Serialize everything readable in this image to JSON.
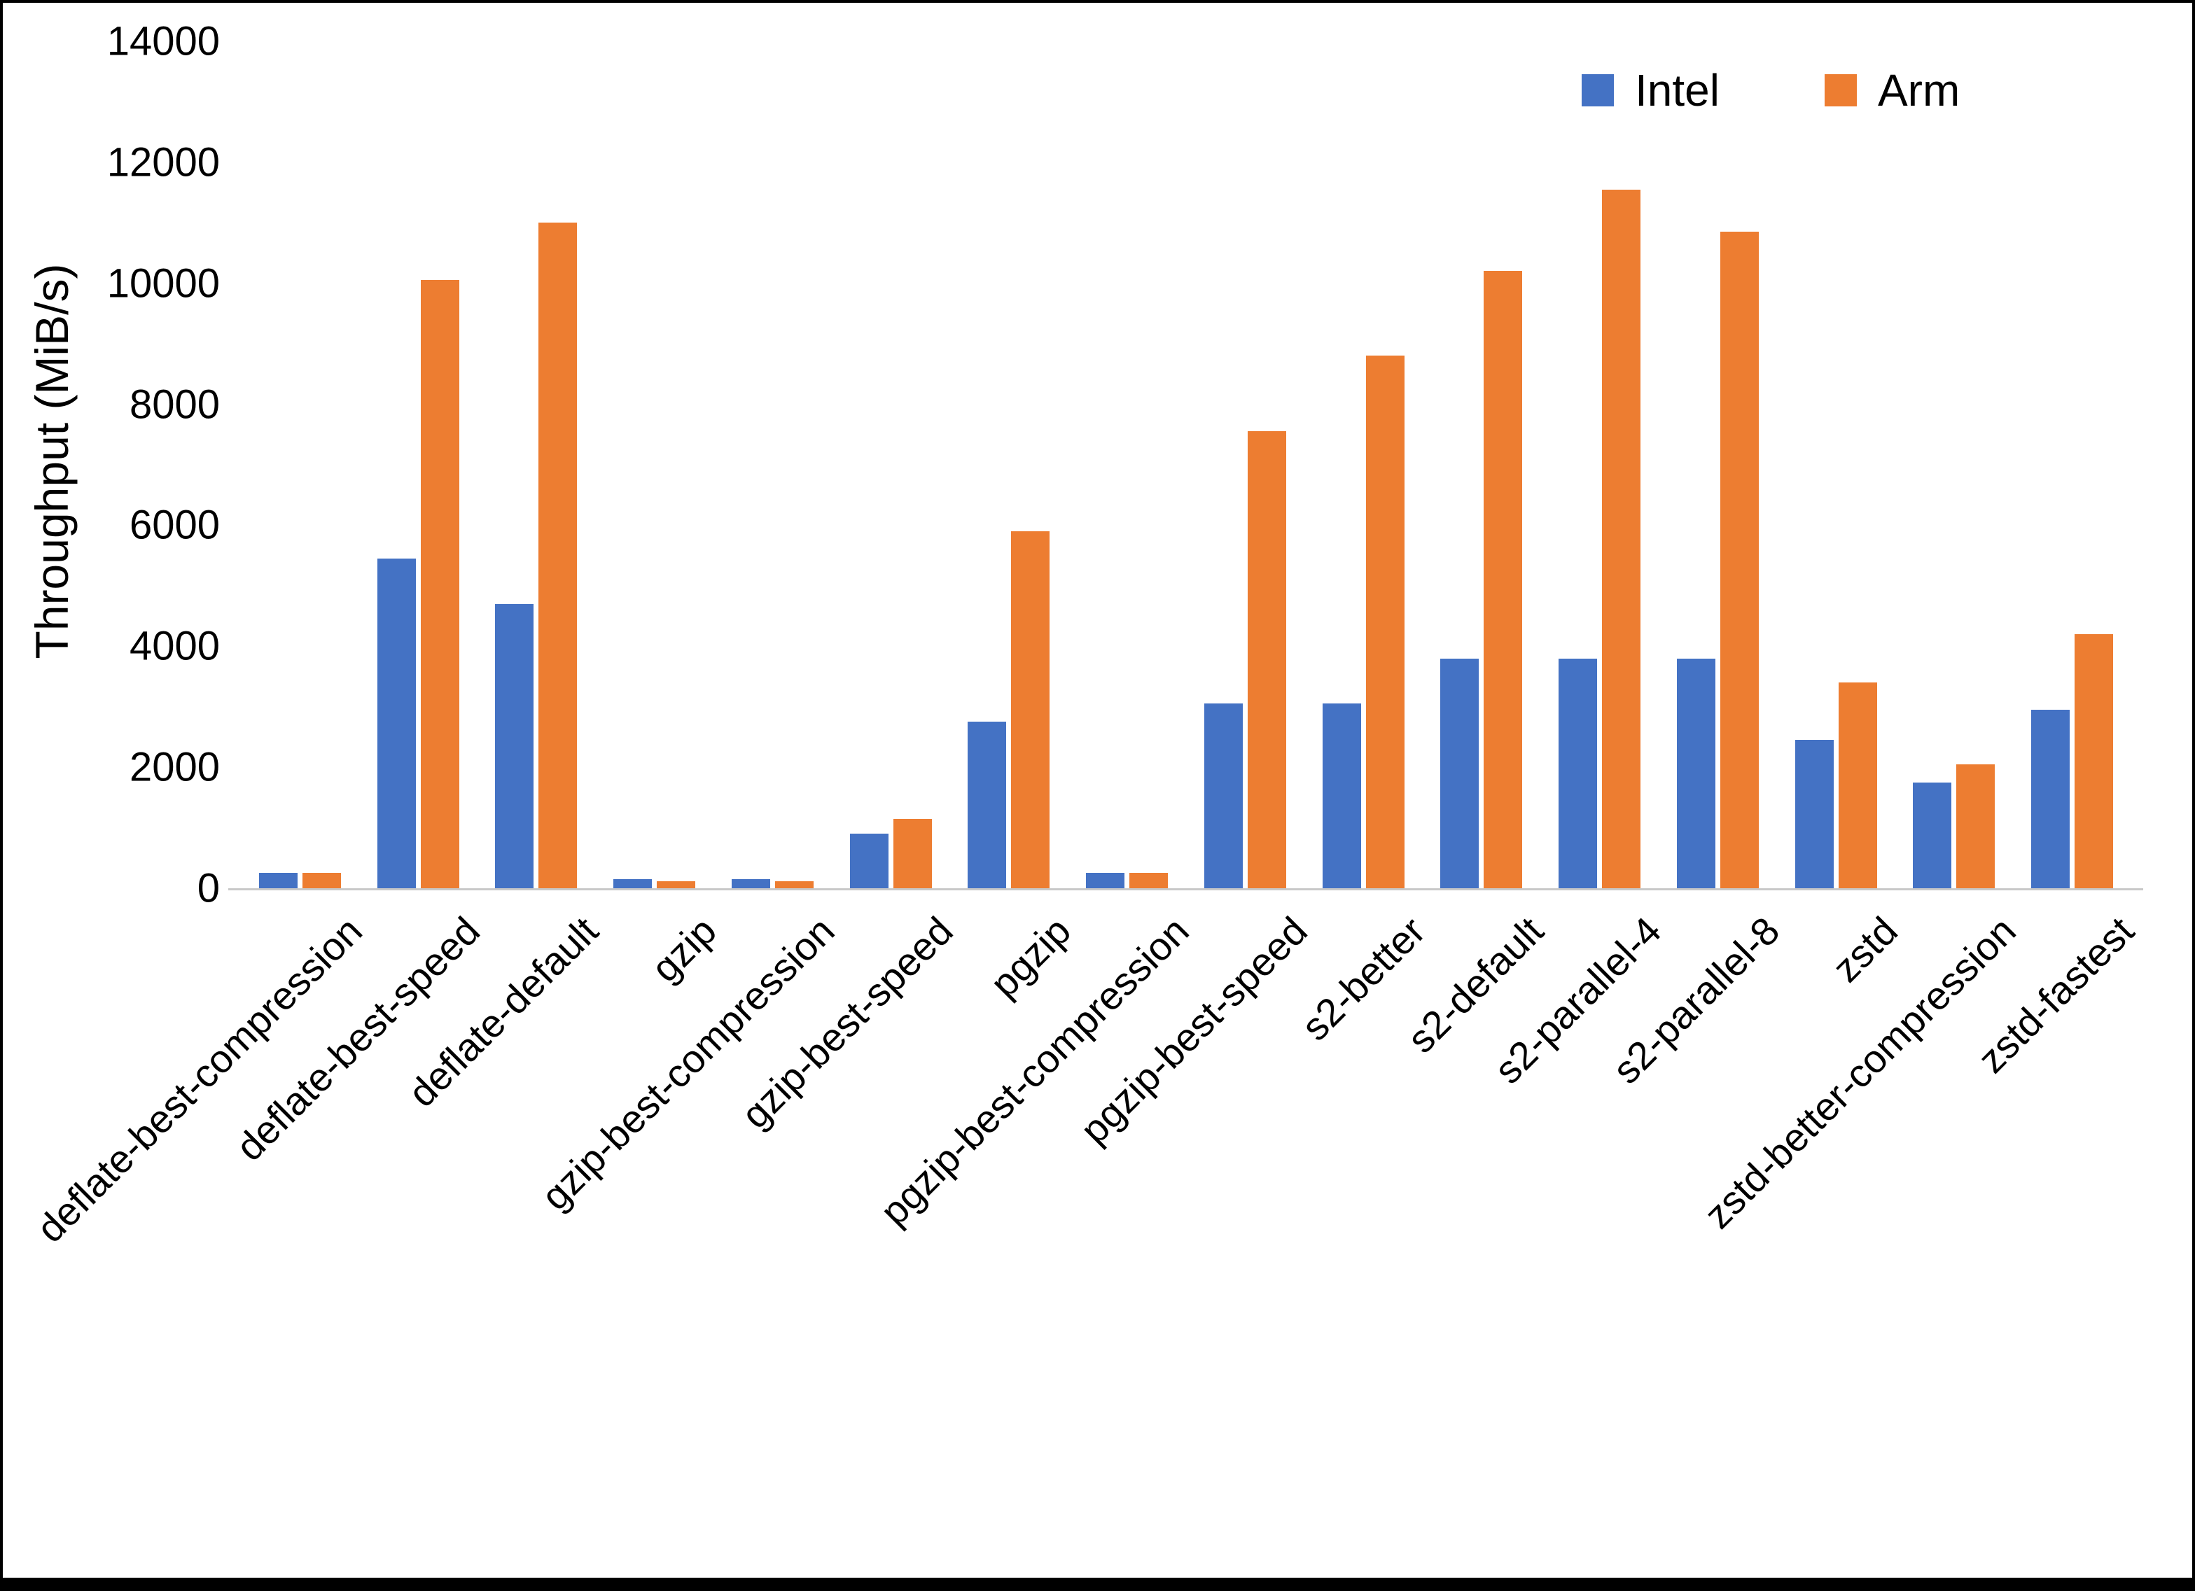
{
  "chart_data": {
    "type": "bar",
    "title": "",
    "xlabel": "",
    "ylabel": "Throughput (MiB/s)",
    "ylim": [
      0,
      14000
    ],
    "ytick_step": 2000,
    "grid": false,
    "legend_position": "top-right",
    "categories": [
      "deflate-best-compression",
      "deflate-best-speed",
      "deflate-default",
      "gzip",
      "gzip-best-compression",
      "gzip-best-speed",
      "pgzip",
      "pgzip-best-compression",
      "pgzip-best-speed",
      "s2-better",
      "s2-default",
      "s2-parallel-4",
      "s2-parallel-8",
      "zstd",
      "zstd-better-compression",
      "zstd-fastest"
    ],
    "series": [
      {
        "name": "Intel",
        "color": "#4472C4",
        "values": [
          250,
          5450,
          4700,
          150,
          150,
          900,
          2750,
          250,
          3050,
          3050,
          3800,
          3800,
          3800,
          2450,
          1750,
          2950
        ]
      },
      {
        "name": "Arm",
        "color": "#ED7D31",
        "values": [
          250,
          10050,
          11000,
          120,
          120,
          1150,
          5900,
          250,
          7550,
          8800,
          10200,
          11550,
          10850,
          3400,
          2050,
          4200
        ]
      }
    ]
  }
}
